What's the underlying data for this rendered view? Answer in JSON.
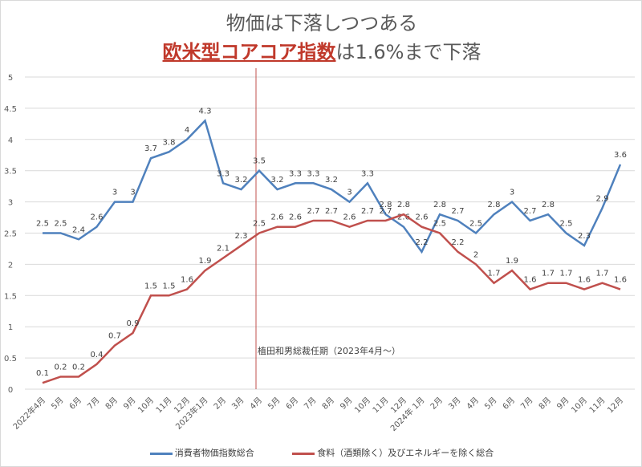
{
  "chart_data": {
    "type": "line",
    "title_line1": "物価は下落しつつある",
    "title_line2_highlight": "欧米型コアコア指数",
    "title_line2_rest": "は1.6%まで下落",
    "categories": [
      "2022年4月",
      "5月",
      "6月",
      "7月",
      "8月",
      "9月",
      "10月",
      "11月",
      "12月",
      "2023年1月",
      "2月",
      "3月",
      "4月",
      "5月",
      "6月",
      "7月",
      "8月",
      "9月",
      "10月",
      "11月",
      "12月",
      "2024年 1月",
      "2月",
      "3月",
      "4月",
      "5月",
      "6月",
      "7月",
      "8月",
      "9月",
      "10月",
      "11月",
      "12月"
    ],
    "ylim": [
      0,
      5
    ],
    "yticks": [
      "0",
      "0.5",
      "1",
      "1.5",
      "2",
      "2.5",
      "3",
      "3.5",
      "4",
      "4.5",
      "5"
    ],
    "grid": true,
    "legend_position": "bottom",
    "series": [
      {
        "name": "消費者物価指数総合",
        "color": "#4f81bd",
        "values": [
          2.5,
          2.5,
          2.4,
          2.6,
          3,
          3,
          3.7,
          3.8,
          4,
          4.3,
          3.3,
          3.2,
          3.5,
          3.2,
          3.3,
          3.3,
          3.2,
          3,
          3.3,
          2.8,
          2.6,
          2.2,
          2.8,
          2.7,
          2.5,
          2.8,
          3,
          2.7,
          2.8,
          2.5,
          2.3,
          2.9,
          3.6
        ]
      },
      {
        "name": "食料（酒類除く）及びエネルギーを除く総合",
        "color": "#c0504d",
        "values": [
          0.1,
          0.2,
          0.2,
          0.4,
          0.7,
          0.9,
          1.5,
          1.5,
          1.6,
          1.9,
          2.1,
          2.3,
          2.5,
          2.6,
          2.6,
          2.7,
          2.7,
          2.6,
          2.7,
          2.7,
          2.8,
          2.6,
          2.5,
          2.2,
          2,
          1.7,
          1.9,
          1.6,
          1.7,
          1.7,
          1.6,
          1.7,
          1.6
        ]
      }
    ],
    "annotation": {
      "text": "植田和男総裁任期（2023年4月～）",
      "category_index": 12,
      "color": "#c0504d"
    }
  }
}
